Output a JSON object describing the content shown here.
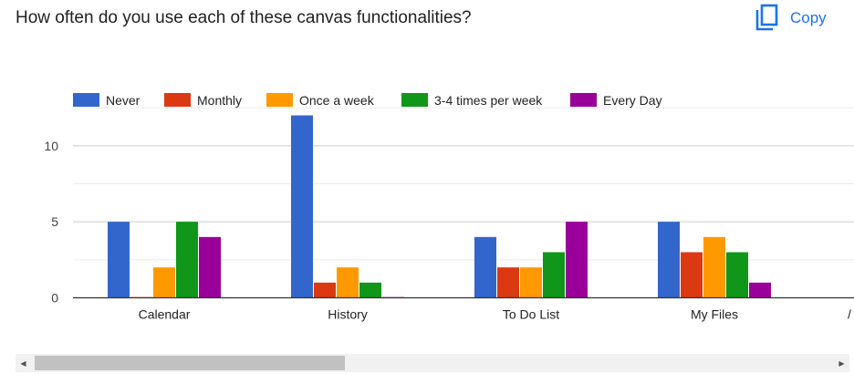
{
  "question": "How often do you use each of these canvas functionalities?",
  "copy": {
    "label": "Copy",
    "icon": "copy-icon"
  },
  "scrollbar": {
    "left_arrow": "◀",
    "right_arrow": "▶"
  },
  "colors": {
    "Never": "#3366cc",
    "Monthly": "#dc3912",
    "Once a week": "#ff9900",
    "3-4 times per week": "#109618",
    "Every Day": "#990099"
  },
  "chart_data": {
    "type": "bar",
    "categories": [
      "Calendar",
      "History",
      "To Do List",
      "My Files"
    ],
    "series": [
      {
        "name": "Never",
        "values": [
          5,
          12,
          4,
          5
        ]
      },
      {
        "name": "Monthly",
        "values": [
          0,
          1,
          2,
          3
        ]
      },
      {
        "name": "Once a week",
        "values": [
          2,
          2,
          2,
          4
        ]
      },
      {
        "name": "3-4 times per week",
        "values": [
          5,
          1,
          3,
          3
        ]
      },
      {
        "name": "Every Day",
        "values": [
          4,
          0,
          5,
          1
        ]
      }
    ],
    "yticks": [
      0,
      5,
      10
    ],
    "ylim": [
      0,
      12.5
    ],
    "grid": true,
    "legend": "top-left",
    "truncated_category_mark": "/"
  }
}
